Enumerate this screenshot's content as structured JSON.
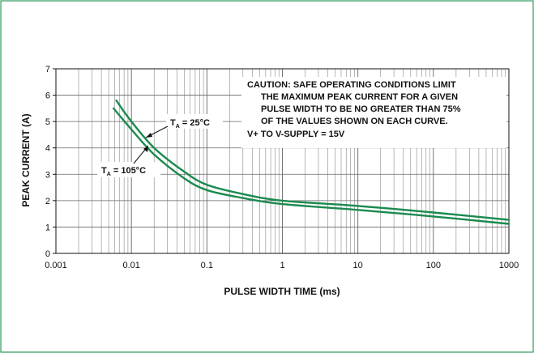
{
  "chart_data": {
    "type": "line",
    "xlabel": "PULSE WIDTH TIME (ms)",
    "ylabel": "PEAK CURRENT (A)",
    "x_scale": "log",
    "xlim": [
      0.001,
      1000
    ],
    "ylim": [
      0,
      7
    ],
    "x_ticks": [
      "0.001",
      "0.01",
      "0.1",
      "1",
      "10",
      "100",
      "1000"
    ],
    "y_ticks": [
      "0",
      "1",
      "2",
      "3",
      "4",
      "5",
      "6",
      "7"
    ],
    "grid": true,
    "colors": {
      "series": "#1a8a4e",
      "border": "#2e9a5a",
      "grid": "#888888"
    },
    "series": [
      {
        "name_prefix": "T",
        "name_sub": "A",
        "name_value": " = 25°C",
        "x": [
          0.0063,
          0.01,
          0.02,
          0.05,
          0.1,
          0.3,
          1,
          10,
          100,
          1000
        ],
        "values": [
          5.8,
          5.0,
          4.0,
          3.1,
          2.6,
          2.25,
          2.0,
          1.8,
          1.55,
          1.27
        ]
      },
      {
        "name_prefix": "T",
        "name_sub": "A",
        "name_value": " = 105°C",
        "x": [
          0.0058,
          0.01,
          0.02,
          0.05,
          0.1,
          0.3,
          1,
          10,
          100,
          1000
        ],
        "values": [
          5.5,
          4.7,
          3.75,
          2.85,
          2.4,
          2.1,
          1.87,
          1.65,
          1.4,
          1.12
        ]
      }
    ],
    "annotation_lines": [
      "CAUTION: SAFE OPERATING CONDITIONS LIMIT",
      "THE MAXIMUM PEAK CURRENT FOR A GIVEN",
      "PULSE WIDTH TO BE NO GREATER THAN 75%",
      "OF THE VALUES SHOWN ON EACH CURVE.",
      "V+ TO V-SUPPLY = 15V"
    ]
  }
}
